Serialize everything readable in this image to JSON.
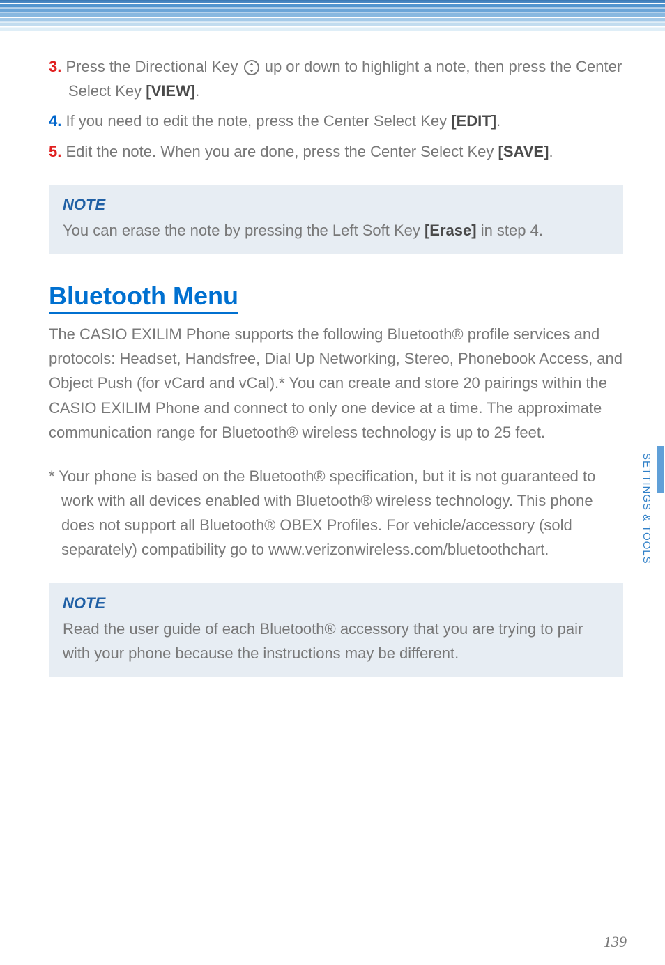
{
  "steps": {
    "s3": {
      "num": "3.",
      "text_before": " Press the Directional Key ",
      "text_after": " up or down to highlight a note, then press the Center Select Key ",
      "key": "[VIEW]",
      "end": "."
    },
    "s4": {
      "num": "4.",
      "text": " If you need to edit the note, press the Center Select Key ",
      "key": "[EDIT]",
      "end": "."
    },
    "s5": {
      "num": "5.",
      "text": " Edit the note. When you are done, press the Center Select Key ",
      "key": "[SAVE]",
      "end": "."
    }
  },
  "note1": {
    "title": "NOTE",
    "text_before": "You can erase the note by pressing the Left Soft Key ",
    "key": "[Erase]",
    "text_after": " in step 4."
  },
  "section": {
    "title": "Bluetooth Menu",
    "body": "The CASIO EXILIM Phone supports the following Bluetooth® profile services and protocols: Headset, Handsfree, Dial Up Networking, Stereo, Phonebook Access, and Object Push (for vCard and vCal).* You can create and store 20 pairings within the CASIO EXILIM Phone and connect to only one device at a time. The approximate communication range for Bluetooth® wireless technology is up to 25 feet.",
    "footnote": "* Your phone is based on the Bluetooth® specification, but it is not guaranteed to work with all devices enabled with Bluetooth® wireless technology. This phone does not support all Bluetooth® OBEX Profiles. For vehicle/accessory (sold separately) compatibility go to www.verizonwireless.com/bluetoothchart."
  },
  "note2": {
    "title": "NOTE",
    "text": "Read the user guide of each Bluetooth® accessory that you are trying to pair with your phone because the instructions may be different."
  },
  "sidetab": "SETTINGS & TOOLS",
  "pagenum": "139"
}
